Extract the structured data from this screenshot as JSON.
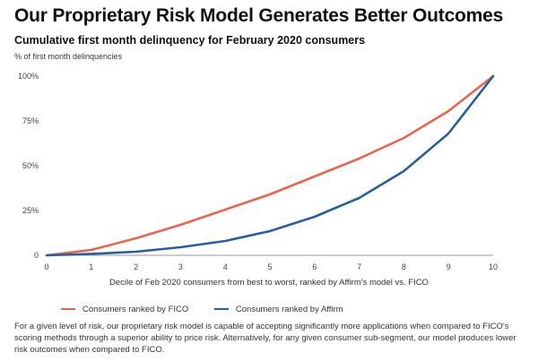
{
  "title": "Our Proprietary Risk Model Generates Better Outcomes",
  "subtitle": "Cumulative first month delinquency for February 2020 consumers",
  "colors": {
    "fico": "#e8644d",
    "affirm": "#2a5f9e",
    "axis": "#9a9a9a"
  },
  "chart_data": {
    "type": "line",
    "title": "Cumulative first month delinquency for February 2020 consumers",
    "ylabel": "% of first month delinquencies",
    "xlabel": "Decile of Feb 2020 consumers from best to worst, ranked by Affirm's model vs. FICO",
    "x": [
      0,
      1,
      2,
      3,
      4,
      5,
      6,
      7,
      8,
      9,
      10
    ],
    "xlim": [
      0,
      10
    ],
    "ylim": [
      0,
      100
    ],
    "yticks": [
      0,
      25,
      50,
      75,
      100
    ],
    "ytick_labels": [
      "0",
      "25%",
      "50%",
      "75%",
      "100%"
    ],
    "grid": false,
    "legend_position": "bottom",
    "series": [
      {
        "name": "Consumers ranked by FICO",
        "color": "#e8644d",
        "values": [
          0,
          3,
          9.5,
          17,
          25.5,
          34,
          44,
          54,
          65.5,
          80.5,
          100
        ]
      },
      {
        "name": "Consumers ranked by Affirm",
        "color": "#2a5f9e",
        "values": [
          0,
          0.8,
          2,
          4.5,
          8,
          13.5,
          21.5,
          32,
          47,
          68,
          100
        ]
      }
    ]
  },
  "legend": {
    "fico_label": "Consumers ranked by FICO",
    "affirm_label": "Consumers ranked by Affirm"
  },
  "footnote": "For a given level of risk, our proprietary risk model is capable of accepting significantly more applications when compared to FICO's scoring methods through a superior ability to price risk. Alternatively, for any given consumer sub-segment, our model produces lower risk outcomes when compared to FICO."
}
